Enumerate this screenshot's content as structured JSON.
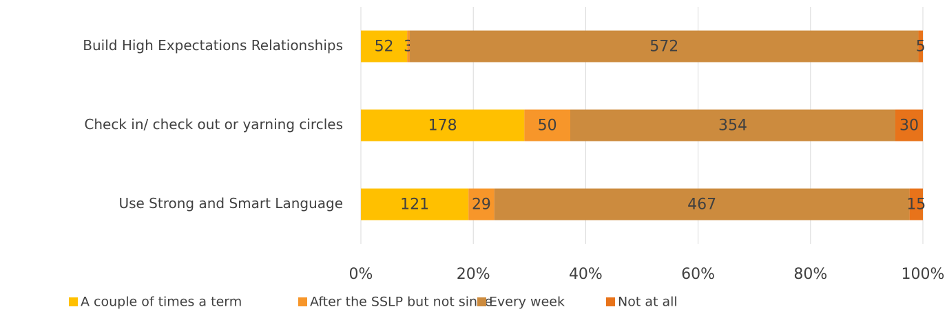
{
  "chart_data": {
    "type": "stacked_bar_horizontal_percent",
    "categories": [
      "Build High Expectations Relationships",
      "Check in/ check out or yarning circles",
      "Use Strong and Smart Language"
    ],
    "series": [
      {
        "name": "A couple of times a term",
        "color": "#ffc000",
        "values": [
          52,
          178,
          121
        ]
      },
      {
        "name": "After the SSLP but not since",
        "color": "#f7962a",
        "values": [
          3,
          50,
          29
        ]
      },
      {
        "name": "Every week",
        "color": "#cc8b3e",
        "values": [
          572,
          354,
          467
        ]
      },
      {
        "name": "Not at all",
        "color": "#e8731a",
        "values": [
          5,
          30,
          15
        ]
      }
    ],
    "xlim": [
      0,
      100
    ],
    "xticks": [
      {
        "value": 0,
        "label": "0%"
      },
      {
        "value": 20,
        "label": "20%"
      },
      {
        "value": 40,
        "label": "40%"
      },
      {
        "value": 60,
        "label": "60%"
      },
      {
        "value": 80,
        "label": "80%"
      },
      {
        "value": 100,
        "label": "100%"
      }
    ],
    "grid": true,
    "legend": "bottom"
  }
}
